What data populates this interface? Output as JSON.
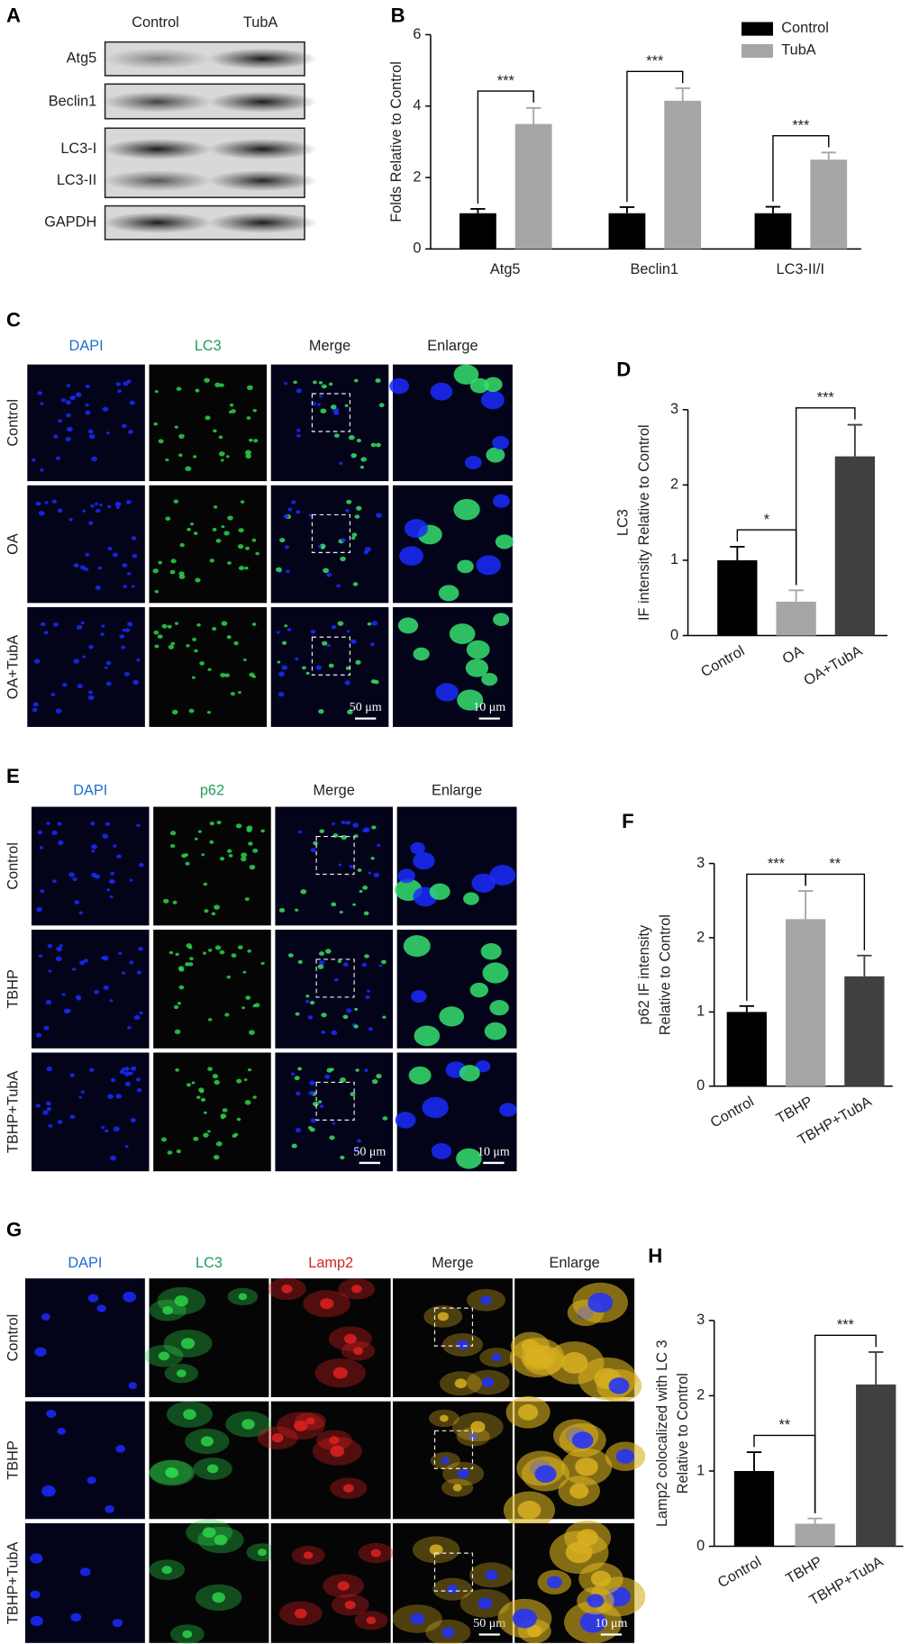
{
  "figure": {
    "blot": {
      "panel_label": "A",
      "columns": [
        "Control",
        "TubA"
      ],
      "rows": [
        "Atg5",
        "Beclin1",
        "LC3-I",
        "LC3-II",
        "GAPDH"
      ]
    },
    "imaging": [
      {
        "panel_label": "C",
        "columns": [
          "DAPI",
          "LC3",
          "Merge",
          "Enlarge"
        ],
        "rows": [
          "Control",
          "OA",
          "OA+TubA"
        ],
        "scale_bars": [
          "50 μm",
          "10 μm"
        ]
      },
      {
        "panel_label": "E",
        "columns": [
          "DAPI",
          "p62",
          "Merge",
          "Enlarge"
        ],
        "rows": [
          "Control",
          "TBHP",
          "TBHP+TubA"
        ],
        "scale_bars": [
          "50 μm",
          "10 μm"
        ]
      },
      {
        "panel_label": "G",
        "columns": [
          "DAPI",
          "LC3",
          "Lamp2",
          "Merge",
          "Enlarge"
        ],
        "rows": [
          "Control",
          "TBHP",
          "TBHP+TubA"
        ],
        "scale_bars": [
          "50 μm",
          "10 μm"
        ]
      }
    ]
  },
  "chart_data": [
    {
      "type": "grouped_bar",
      "panel_label": "B",
      "ylabel": [
        "Folds Relative to Control"
      ],
      "categories": [
        "Atg5",
        "Beclin1",
        "LC3-II/I"
      ],
      "series": [
        {
          "name": "Control",
          "color": "#000000",
          "values": [
            1,
            1,
            1
          ],
          "errors": [
            0.12,
            0.17,
            0.18
          ]
        },
        {
          "name": "TubA",
          "color": "#a6a6a6",
          "values": [
            3.5,
            4.15,
            2.5
          ],
          "errors": [
            0.45,
            0.35,
            0.2
          ]
        }
      ],
      "annotations": [
        "***",
        "***",
        "***"
      ],
      "ylim": [
        0,
        6
      ],
      "yticks": [
        0,
        2,
        4,
        6
      ],
      "legend": "upper right"
    },
    {
      "type": "bar",
      "panel_label": "D",
      "ylabel": [
        "LC3",
        "IF intensity Relative to Control"
      ],
      "categories": [
        "Control",
        "OA",
        "OA+TubA"
      ],
      "values": [
        1,
        0.45,
        2.38
      ],
      "errors": [
        0.18,
        0.15,
        0.42
      ],
      "colors": [
        "#000000",
        "#a6a6a6",
        "#404040"
      ],
      "annotations": [
        "*",
        "***"
      ],
      "ylim": [
        0,
        3
      ],
      "yticks": [
        0,
        1,
        2,
        3
      ]
    },
    {
      "type": "bar",
      "panel_label": "F",
      "ylabel": [
        "p62 IF intensity",
        "Relative to Control"
      ],
      "categories": [
        "Control",
        "TBHP",
        "TBHP+TubA"
      ],
      "values": [
        1,
        2.25,
        1.48
      ],
      "errors": [
        0.08,
        0.38,
        0.28
      ],
      "colors": [
        "#000000",
        "#a6a6a6",
        "#404040"
      ],
      "annotations": [
        "***",
        "**"
      ],
      "ylim": [
        0,
        3
      ],
      "yticks": [
        0,
        1,
        2,
        3
      ]
    },
    {
      "type": "bar",
      "panel_label": "H",
      "ylabel": [
        "Lamp2 colocalized with LC 3",
        "Relative to Control"
      ],
      "categories": [
        "Control",
        "TBHP",
        "TBHP+TubA"
      ],
      "values": [
        1,
        0.3,
        2.15
      ],
      "errors": [
        0.25,
        0.07,
        0.43
      ],
      "colors": [
        "#000000",
        "#a6a6a6",
        "#404040"
      ],
      "annotations": [
        "**",
        "***"
      ],
      "ylim": [
        0,
        3
      ],
      "yticks": [
        0,
        1,
        2,
        3
      ]
    }
  ]
}
